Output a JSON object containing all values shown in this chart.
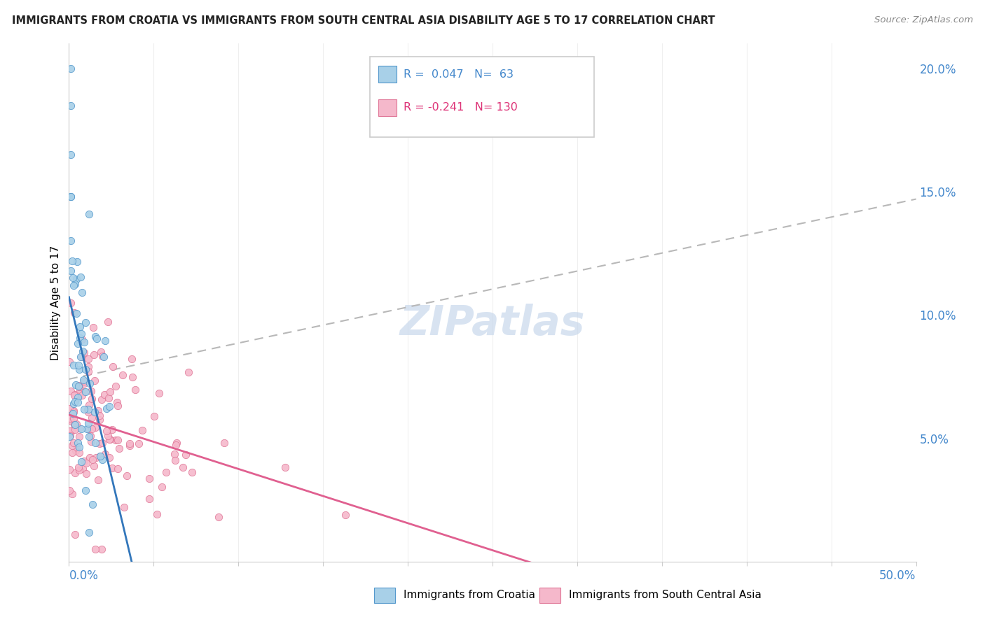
{
  "title": "IMMIGRANTS FROM CROATIA VS IMMIGRANTS FROM SOUTH CENTRAL ASIA DISABILITY AGE 5 TO 17 CORRELATION CHART",
  "source": "Source: ZipAtlas.com",
  "ylabel": "Disability Age 5 to 17",
  "right_yticks": [
    "5.0%",
    "10.0%",
    "15.0%",
    "20.0%"
  ],
  "right_ytick_vals": [
    0.05,
    0.1,
    0.15,
    0.2
  ],
  "legend_croatia": "Immigrants from Croatia",
  "legend_sca": "Immigrants from South Central Asia",
  "R_croatia": 0.047,
  "N_croatia": 63,
  "R_sca": -0.241,
  "N_sca": 130,
  "croatia_color": "#a8d0e8",
  "sca_color": "#f5b8cb",
  "croatia_edge_color": "#5599cc",
  "sca_edge_color": "#e07898",
  "croatia_line_color": "#3377bb",
  "sca_line_color": "#e06090",
  "dash_line_color": "#b8b8b8",
  "watermark_color": "#c8d8ec",
  "xlim": [
    0.0,
    0.5
  ],
  "ylim": [
    0.0,
    0.21
  ],
  "grid_color": "#e0e0e0",
  "title_color": "#222222",
  "source_color": "#888888",
  "axis_label_color": "#4488cc",
  "legend_text_croatia_color": "#4488cc",
  "legend_text_sca_color": "#dd3377"
}
